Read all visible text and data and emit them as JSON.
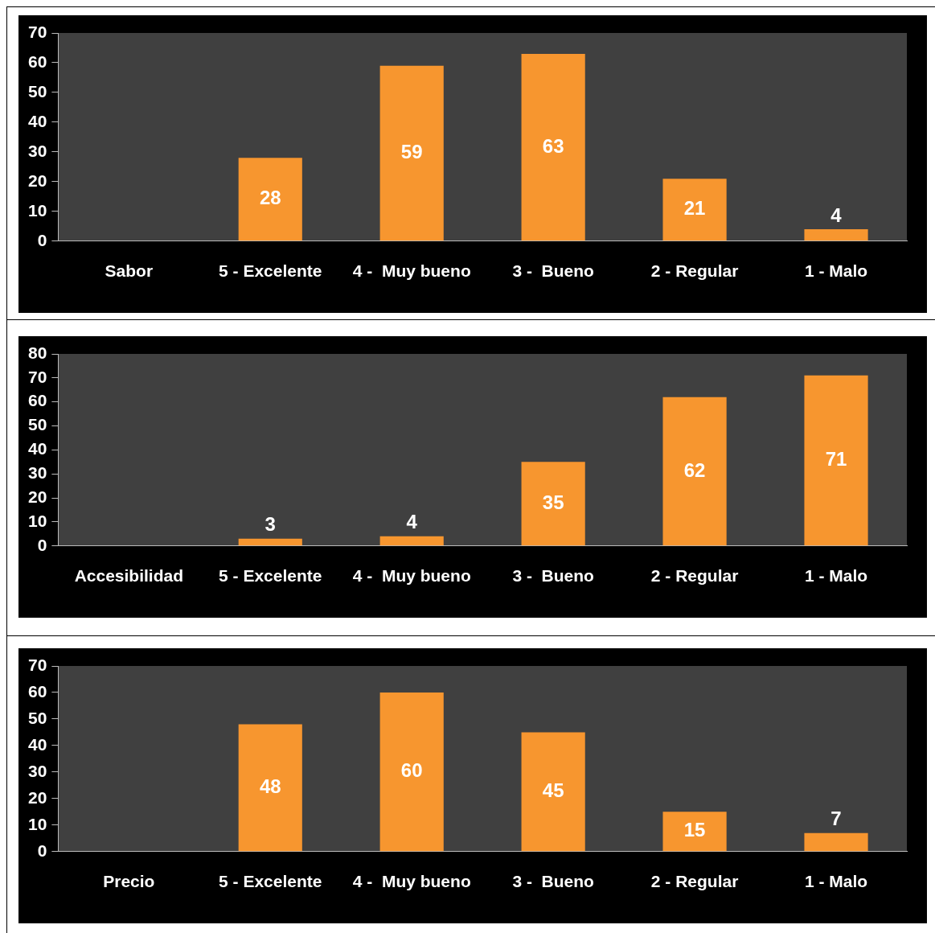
{
  "chart_data": [
    {
      "type": "bar",
      "categories": [
        "Sabor",
        "5 - Excelente",
        "4 -  Muy bueno",
        "3 -  Bueno",
        "2 - Regular",
        "1 - Malo"
      ],
      "values": [
        null,
        28,
        59,
        63,
        21,
        4
      ],
      "color": "#f7962f",
      "ylim": [
        0,
        70
      ],
      "yticks": [
        0,
        10,
        20,
        30,
        40,
        50,
        60,
        70
      ],
      "grid": false,
      "data_labels": true
    },
    {
      "type": "bar",
      "categories": [
        "Accesibilidad",
        "5 - Excelente",
        "4 -  Muy bueno",
        "3 -  Bueno",
        "2 - Regular",
        "1 - Malo"
      ],
      "values": [
        null,
        3,
        4,
        35,
        62,
        71
      ],
      "color": "#f7962f",
      "ylim": [
        0,
        80
      ],
      "yticks": [
        0,
        10,
        20,
        30,
        40,
        50,
        60,
        70,
        80
      ],
      "grid": false,
      "data_labels": true
    },
    {
      "type": "bar",
      "categories": [
        "Precio",
        "5 - Excelente",
        "4 -  Muy bueno",
        "3 -  Bueno",
        "2 - Regular",
        "1 - Malo"
      ],
      "values": [
        null,
        48,
        60,
        45,
        15,
        7
      ],
      "color": "#f7962f",
      "ylim": [
        0,
        70
      ],
      "yticks": [
        0,
        10,
        20,
        30,
        40,
        50,
        60,
        70
      ],
      "grid": false,
      "data_labels": true
    }
  ]
}
